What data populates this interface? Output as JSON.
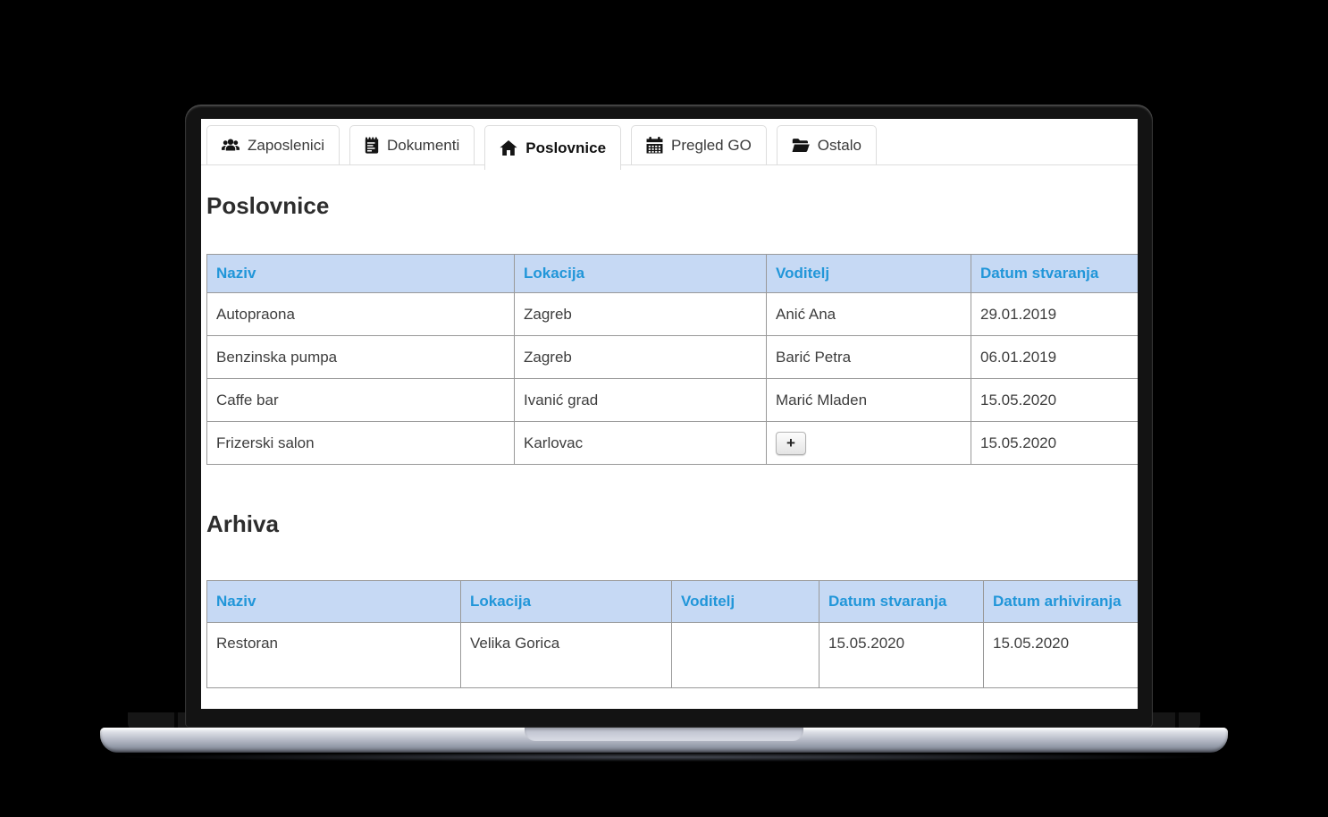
{
  "tabs": {
    "items": [
      {
        "label": "Zaposlenici",
        "icon": "users-icon",
        "active": false
      },
      {
        "label": "Dokumenti",
        "icon": "document-icon",
        "active": false
      },
      {
        "label": "Poslovnice",
        "icon": "home-icon",
        "active": true
      },
      {
        "label": "Pregled GO",
        "icon": "calendar-icon",
        "active": false
      },
      {
        "label": "Ostalo",
        "icon": "folder-icon",
        "active": false
      }
    ]
  },
  "sections": [
    {
      "heading": "Poslovnice",
      "columns": [
        "Naziv",
        "Lokacija",
        "Voditelj",
        "Datum stvaranja"
      ],
      "rows": [
        [
          "Autopraona",
          "Zagreb",
          "Anić Ana",
          "29.01.2019"
        ],
        [
          "Benzinska pumpa",
          "Zagreb",
          "Barić Petra",
          "06.01.2019"
        ],
        [
          "Caffe bar",
          "Ivanić grad",
          "Marić Mladen",
          "15.05.2020"
        ],
        [
          "Frizerski salon",
          "Karlovac",
          {
            "button": "+"
          },
          "15.05.2020"
        ]
      ]
    },
    {
      "heading": "Arhiva",
      "columns": [
        "Naziv",
        "Lokacija",
        "Voditelj",
        "Datum stvaranja",
        "Datum arhiviranja"
      ],
      "rows": [
        [
          "Restoran",
          "Velika Gorica",
          "",
          "15.05.2020",
          "15.05.2020"
        ]
      ]
    }
  ],
  "colors": {
    "header_bg": "#c6d9f4",
    "header_text": "#2196d9",
    "accent": "#2196d9"
  }
}
